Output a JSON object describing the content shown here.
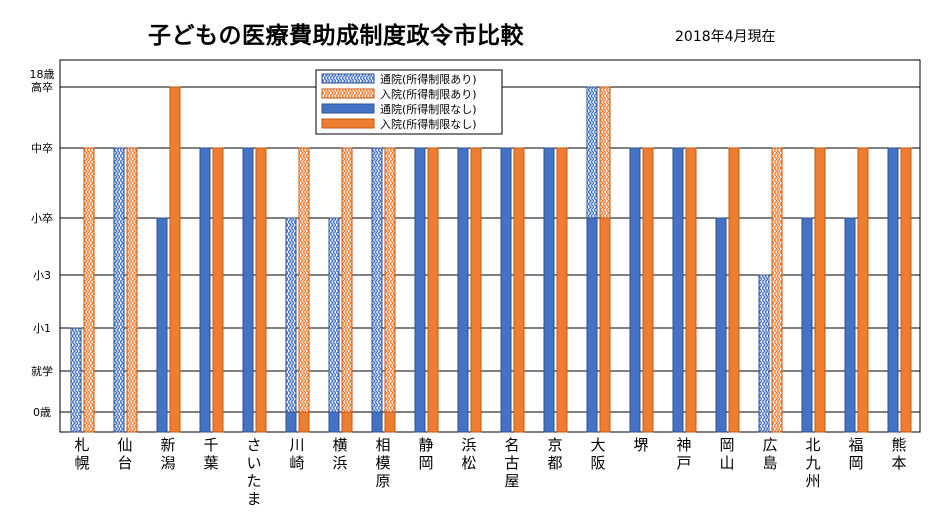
{
  "title": "子どもの医療費助成制度政令市比較",
  "as_of": "2018年4月現在",
  "colors": {
    "tsuin": "#4472C4",
    "nyuin": "#ED7D31",
    "tsuin_border": "#2F528F",
    "nyuin_border": "#C55A11"
  },
  "chart_data": {
    "type": "bar",
    "title": "子どもの医療費助成制度政令市比較",
    "y_ticks": [
      "0歳",
      "就学",
      "小1",
      "小3",
      "小卒",
      "中卒",
      "高卒"
    ],
    "y_top_label": "18歳",
    "legend": [
      {
        "label": "通院(所得制限あり)",
        "style": "hatched",
        "color": "#4472C4"
      },
      {
        "label": "入院(所得制限あり)",
        "style": "hatched",
        "color": "#ED7D31"
      },
      {
        "label": "通院(所得制限なし)",
        "style": "solid",
        "color": "#4472C4"
      },
      {
        "label": "入院(所得制限なし)",
        "style": "solid",
        "color": "#ED7D31"
      }
    ],
    "categories": [
      "札幌",
      "仙台",
      "新潟",
      "千葉",
      "さいたま",
      "川崎",
      "横浜",
      "相模原",
      "静岡",
      "浜松",
      "名古屋",
      "京都",
      "大阪",
      "堺",
      "神戸",
      "岡山",
      "広島",
      "北九州",
      "福岡",
      "熊本"
    ],
    "tsuin_nolimit": [
      "",
      "",
      "小卒",
      "中卒",
      "中卒",
      "0歳",
      "0歳",
      "0歳",
      "中卒",
      "中卒",
      "中卒",
      "中卒",
      "小卒",
      "中卒",
      "中卒",
      "小卒",
      "",
      "小卒",
      "小卒",
      "中卒"
    ],
    "tsuin_limit": [
      "小1",
      "中卒",
      "",
      "",
      "",
      "小卒",
      "小卒",
      "中卒",
      "",
      "",
      "",
      "",
      "高卒",
      "",
      "",
      "",
      "小3",
      "",
      "",
      ""
    ],
    "nyuin_nolimit": [
      "",
      "",
      "高卒",
      "中卒",
      "中卒",
      "0歳",
      "0歳",
      "0歳",
      "中卒",
      "中卒",
      "中卒",
      "中卒",
      "小卒",
      "中卒",
      "中卒",
      "中卒",
      "",
      "中卒",
      "中卒",
      "中卒"
    ],
    "nyuin_limit": [
      "中卒",
      "中卒",
      "",
      "",
      "",
      "中卒",
      "中卒",
      "中卒",
      "",
      "",
      "",
      "",
      "高卒",
      "",
      "",
      "",
      "中卒",
      "",
      "",
      ""
    ]
  }
}
